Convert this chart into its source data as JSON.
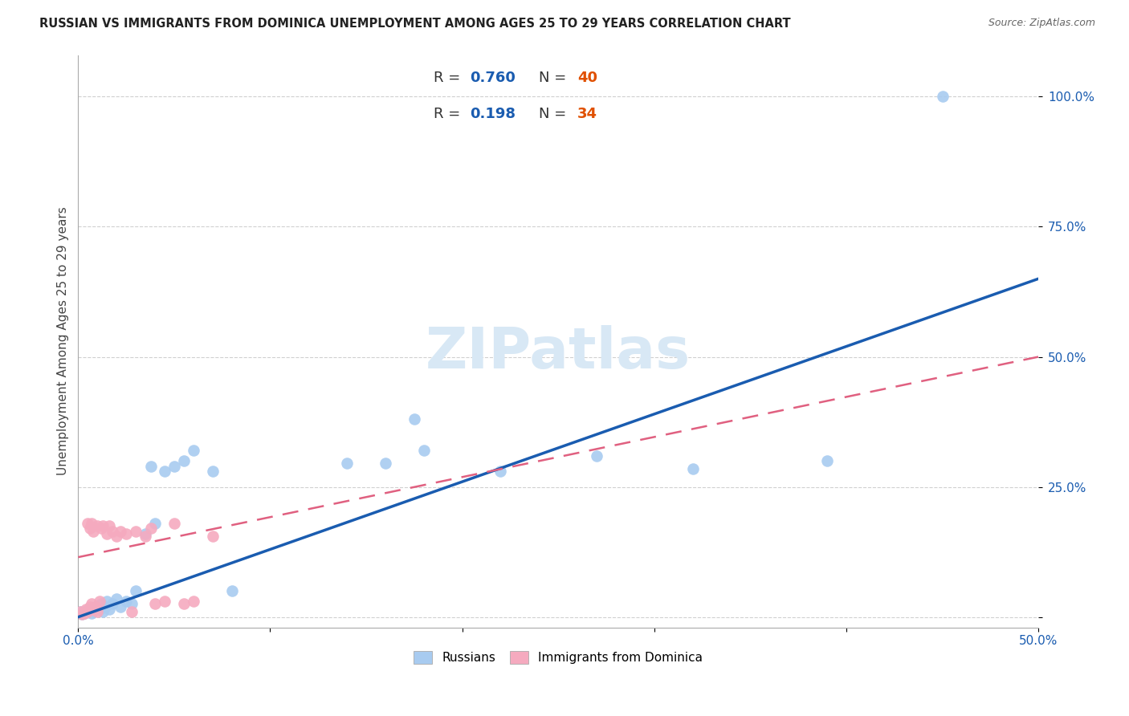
{
  "title": "RUSSIAN VS IMMIGRANTS FROM DOMINICA UNEMPLOYMENT AMONG AGES 25 TO 29 YEARS CORRELATION CHART",
  "source": "Source: ZipAtlas.com",
  "ylabel": "Unemployment Among Ages 25 to 29 years",
  "xlim": [
    0.0,
    0.5
  ],
  "ylim": [
    -0.02,
    1.08
  ],
  "x_ticks": [
    0.0,
    0.1,
    0.2,
    0.3,
    0.4,
    0.5
  ],
  "x_tick_labels": [
    "0.0%",
    "",
    "",
    "",
    "",
    "50.0%"
  ],
  "y_ticks": [
    0.0,
    0.25,
    0.5,
    0.75,
    1.0
  ],
  "y_tick_labels": [
    "",
    "25.0%",
    "50.0%",
    "75.0%",
    "100.0%"
  ],
  "russian_R": "0.760",
  "russian_N": "40",
  "dominica_R": "0.198",
  "dominica_N": "34",
  "blue_color": "#A8CBF0",
  "pink_color": "#F5AABF",
  "blue_line_color": "#1A5CB0",
  "pink_line_color": "#E06080",
  "legend_R_color": "#1A5CB0",
  "legend_N_color": "#E05000",
  "watermark_color": "#D8E8F5",
  "grid_color": "#d0d0d0",
  "russians_x": [
    0.001,
    0.002,
    0.003,
    0.004,
    0.005,
    0.006,
    0.007,
    0.008,
    0.009,
    0.01,
    0.011,
    0.012,
    0.013,
    0.014,
    0.015,
    0.016,
    0.018,
    0.02,
    0.022,
    0.025,
    0.028,
    0.03,
    0.035,
    0.038,
    0.04,
    0.045,
    0.05,
    0.055,
    0.06,
    0.07,
    0.08,
    0.14,
    0.16,
    0.175,
    0.18,
    0.22,
    0.27,
    0.32,
    0.39,
    0.45
  ],
  "russians_y": [
    0.01,
    0.005,
    0.008,
    0.012,
    0.01,
    0.015,
    0.008,
    0.012,
    0.02,
    0.018,
    0.015,
    0.025,
    0.01,
    0.02,
    0.03,
    0.015,
    0.025,
    0.035,
    0.02,
    0.03,
    0.025,
    0.05,
    0.16,
    0.29,
    0.18,
    0.28,
    0.29,
    0.3,
    0.32,
    0.28,
    0.05,
    0.295,
    0.295,
    0.38,
    0.32,
    0.28,
    0.31,
    0.285,
    0.3,
    1.0
  ],
  "dominica_x": [
    0.001,
    0.002,
    0.003,
    0.004,
    0.005,
    0.005,
    0.006,
    0.006,
    0.007,
    0.007,
    0.008,
    0.008,
    0.009,
    0.01,
    0.01,
    0.011,
    0.012,
    0.013,
    0.015,
    0.016,
    0.018,
    0.02,
    0.022,
    0.025,
    0.028,
    0.03,
    0.035,
    0.038,
    0.04,
    0.045,
    0.05,
    0.055,
    0.06,
    0.07
  ],
  "dominica_y": [
    0.01,
    0.005,
    0.008,
    0.015,
    0.01,
    0.18,
    0.02,
    0.17,
    0.025,
    0.18,
    0.015,
    0.165,
    0.02,
    0.01,
    0.175,
    0.03,
    0.17,
    0.175,
    0.16,
    0.175,
    0.165,
    0.155,
    0.165,
    0.16,
    0.01,
    0.165,
    0.155,
    0.17,
    0.025,
    0.03,
    0.18,
    0.025,
    0.03,
    0.155
  ],
  "blue_line_x": [
    0.0,
    0.5
  ],
  "blue_line_y": [
    0.0,
    0.65
  ],
  "pink_line_x": [
    0.0,
    0.14
  ],
  "pink_line_y": [
    0.07,
    0.22
  ]
}
